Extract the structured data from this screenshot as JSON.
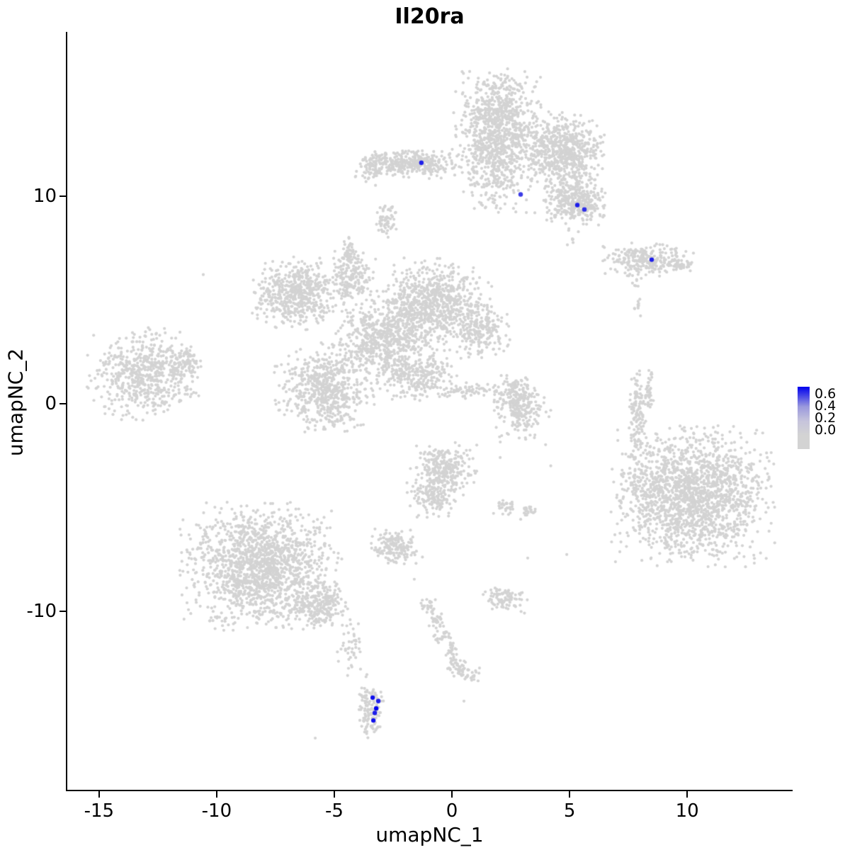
{
  "title": "Il20ra",
  "x_axis": {
    "label": "umapNC_1",
    "tick_labels": [
      "-15",
      "-10",
      "-5",
      "0",
      "5",
      "10"
    ],
    "tick_values": [
      -15,
      -10,
      -5,
      0,
      5,
      10
    ]
  },
  "y_axis": {
    "label": "umapNC_2",
    "tick_labels": [
      "10",
      "0",
      "-10"
    ],
    "tick_values": [
      10,
      0,
      -10
    ]
  },
  "legend": {
    "tick_labels": [
      "0.6",
      "0.4",
      "0.2",
      "0.0"
    ],
    "color_high": "#0000EE",
    "color_mid": "#9A99DD",
    "color_low": "#D3D3D3"
  },
  "chart_data": {
    "type": "scatter",
    "title": "Il20ra",
    "xlabel": "umapNC_1",
    "ylabel": "umapNC_2",
    "xlim": [
      -16.35,
      14.45
    ],
    "ylim": [
      -18.6,
      17.9
    ],
    "grid": false,
    "legend_position": "right",
    "background_point_color": "#D3D3D3",
    "expression_color_high": "#0000EE",
    "value_max": 0.7,
    "colorbar_ticks": [
      0.6,
      0.4,
      0.2,
      0.0
    ],
    "clusters": [
      {
        "name": "top-center-large",
        "blobs": [
          [
            1.96,
            13.3,
            0.82,
            1.2,
            900
          ],
          [
            4.73,
            12.1,
            0.75,
            0.82,
            650
          ],
          [
            5.24,
            9.75,
            0.57,
            0.51,
            350
          ],
          [
            1.9,
            10.8,
            0.75,
            0.7,
            160
          ],
          [
            5.1,
            7.95,
            0.18,
            0.3,
            8
          ]
        ]
      },
      {
        "name": "top-left-arm",
        "blobs": [
          [
            -1.81,
            11.55,
            0.96,
            0.31,
            350
          ],
          [
            -3.34,
            11.35,
            0.25,
            0.3,
            60
          ]
        ]
      },
      {
        "name": "small-upper-left-blob",
        "blobs": [
          [
            -2.8,
            8.8,
            0.24,
            0.44,
            60
          ]
        ]
      },
      {
        "name": "right-island",
        "blobs": [
          [
            8.25,
            6.93,
            0.84,
            0.34,
            260
          ],
          [
            9.55,
            6.66,
            0.36,
            0.17,
            40
          ],
          [
            7.8,
            5.87,
            0.12,
            0.2,
            8
          ],
          [
            7.9,
            4.7,
            0.15,
            0.25,
            10
          ]
        ]
      },
      {
        "name": "central-complex",
        "blobs": [
          [
            -6.57,
            5.29,
            0.84,
            0.75,
            550
          ],
          [
            -4.25,
            6.14,
            0.42,
            0.61,
            160
          ],
          [
            -4.4,
            7.24,
            0.18,
            0.35,
            50
          ],
          [
            -0.78,
            4.71,
            1.05,
            0.96,
            800
          ],
          [
            1.27,
            3.48,
            0.54,
            0.61,
            200
          ],
          [
            -2.95,
            3.14,
            0.9,
            0.96,
            600
          ],
          [
            -5.42,
            0.75,
            0.9,
            0.92,
            600
          ],
          [
            -1.51,
            1.3,
            0.75,
            0.51,
            250
          ],
          [
            0.66,
            0.61,
            0.66,
            0.17,
            70
          ]
        ]
      },
      {
        "name": "far-left-cluster",
        "blobs": [
          [
            -13.04,
            1.43,
            1.05,
            0.96,
            600
          ],
          [
            -11.32,
            1.98,
            0.36,
            0.34,
            70
          ]
        ]
      },
      {
        "name": "center-right-small",
        "blobs": [
          [
            2.98,
            -0.24,
            0.54,
            0.68,
            250
          ],
          [
            2.77,
            0.75,
            0.3,
            0.27,
            50
          ]
        ]
      },
      {
        "name": "right-slivers",
        "blobs": [
          [
            7.89,
            -0.27,
            0.15,
            0.89,
            110
          ],
          [
            8.37,
            0.45,
            0.09,
            0.5,
            40
          ]
        ]
      },
      {
        "name": "bottom-right-large",
        "blobs": [
          [
            10.24,
            -4.44,
            1.45,
            1.43,
            1700
          ],
          [
            8.1,
            -4.1,
            0.45,
            1.0,
            90
          ]
        ]
      },
      {
        "name": "center-two-lobe",
        "blobs": [
          [
            -0.33,
            -3.14,
            0.6,
            0.58,
            260
          ],
          [
            -0.84,
            -4.44,
            0.45,
            0.48,
            150
          ]
        ]
      },
      {
        "name": "tiny-pair",
        "blobs": [
          [
            2.26,
            -5.05,
            0.24,
            0.2,
            30
          ],
          [
            3.22,
            -5.19,
            0.21,
            0.17,
            25
          ]
        ]
      },
      {
        "name": "center-blob",
        "blobs": [
          [
            -2.35,
            -6.83,
            0.48,
            0.41,
            160
          ]
        ]
      },
      {
        "name": "bottom-left-large",
        "blobs": [
          [
            -8.13,
            -7.85,
            1.45,
            1.3,
            1500
          ],
          [
            -5.72,
            -9.73,
            0.6,
            0.51,
            260
          ],
          [
            -4.31,
            -11.95,
            0.24,
            0.61,
            40
          ]
        ]
      },
      {
        "name": "bottom-trail",
        "blobs": [
          [
            -3.46,
            -14.68,
            0.24,
            0.75,
            130
          ]
        ]
      },
      {
        "name": "small-bottom-center",
        "blobs": [
          [
            2.17,
            -9.39,
            0.45,
            0.31,
            90
          ]
        ]
      },
      {
        "name": "thin-diagonal",
        "blobs": [
          [
            -0.99,
            -9.83,
            0.18,
            0.2,
            25
          ],
          [
            -0.69,
            -10.51,
            0.18,
            0.2,
            25
          ],
          [
            -0.39,
            -11.19,
            0.18,
            0.2,
            25
          ],
          [
            -0.09,
            -11.88,
            0.18,
            0.2,
            25
          ],
          [
            0.21,
            -12.56,
            0.18,
            0.2,
            25
          ],
          [
            0.6,
            -12.97,
            0.36,
            0.2,
            45
          ]
        ]
      }
    ],
    "singles": [
      [
        -10.57,
        6.21
      ],
      [
        -3.25,
        10.51
      ],
      [
        3.98,
        -1.98
      ],
      [
        4.88,
        -7.27
      ],
      [
        3.22,
        -7.44
      ],
      [
        -1.6,
        -8.46
      ],
      [
        -5.81,
        -16.11
      ],
      [
        0.51,
        -14.33
      ],
      [
        2.05,
        -2.6
      ],
      [
        4.2,
        -3.0
      ]
    ],
    "expressing_cells": [
      {
        "x": -1.3,
        "y": 11.6,
        "value": 0.6
      },
      {
        "x": 2.92,
        "y": 10.07,
        "value": 0.5
      },
      {
        "x": 5.33,
        "y": 9.56,
        "value": 0.6
      },
      {
        "x": 5.63,
        "y": 9.35,
        "value": 0.55
      },
      {
        "x": 8.49,
        "y": 6.93,
        "value": 0.6
      },
      {
        "x": -3.37,
        "y": -14.16,
        "value": 0.65
      },
      {
        "x": -3.13,
        "y": -14.33,
        "value": 0.6
      },
      {
        "x": -3.22,
        "y": -14.68,
        "value": 0.7
      },
      {
        "x": -3.28,
        "y": -14.9,
        "value": 0.6
      },
      {
        "x": -3.34,
        "y": -15.26,
        "value": 0.65
      }
    ]
  }
}
